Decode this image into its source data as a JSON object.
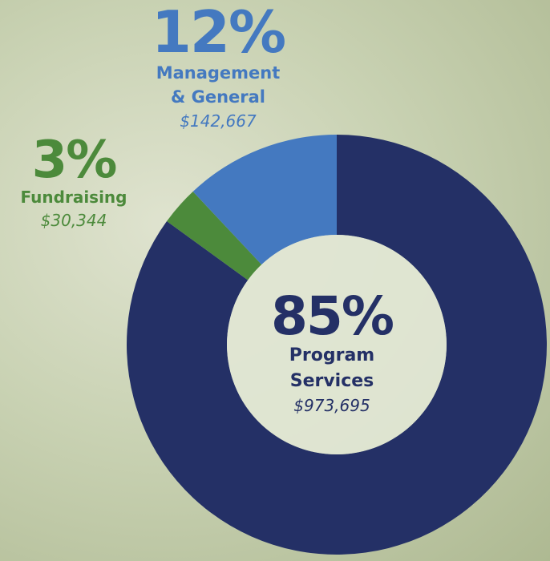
{
  "chart_data": {
    "type": "donut",
    "categories": [
      "Program Services",
      "Fundraising",
      "Management & General"
    ],
    "values": [
      85,
      3,
      12
    ],
    "value_labels": [
      "85%",
      "3%",
      "12%"
    ],
    "amounts": [
      "$973,695",
      "$30,344",
      "$142,667"
    ],
    "colors": [
      "#243066",
      "#4c8a3b",
      "#4479c0"
    ]
  }
}
